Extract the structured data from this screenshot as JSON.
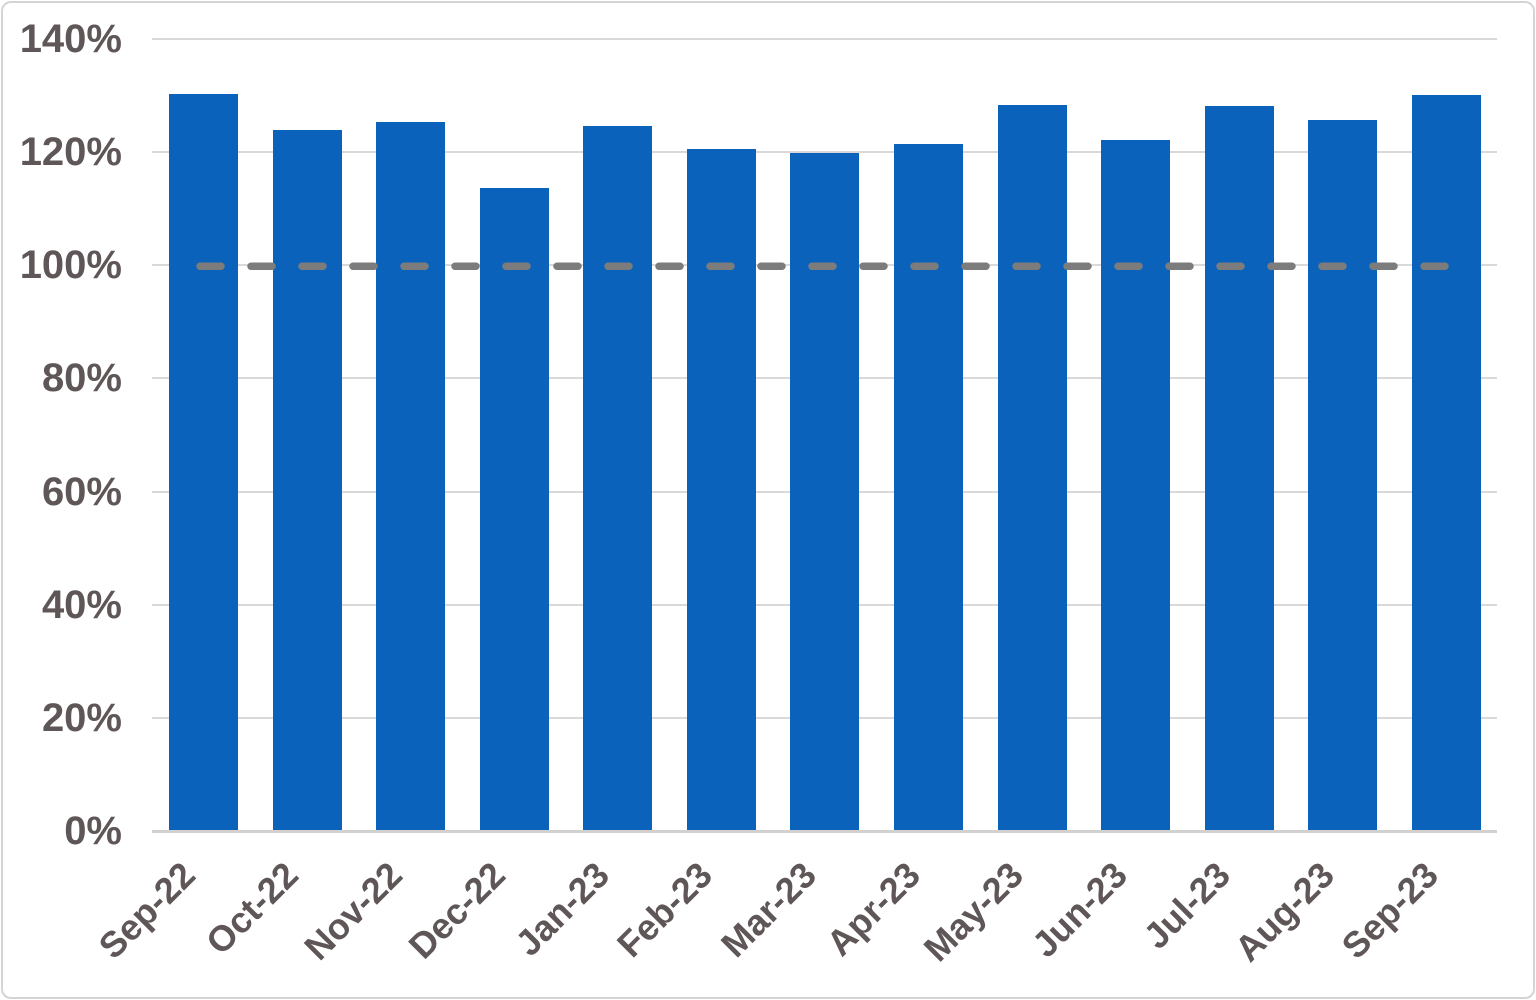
{
  "chart_data": {
    "type": "bar",
    "title": "",
    "categories": [
      "Sep-22",
      "Oct-22",
      "Nov-22",
      "Dec-22",
      "Jan-23",
      "Feb-23",
      "Mar-23",
      "Apr-23",
      "May-23",
      "Jun-23",
      "Jul-23",
      "Aug-23",
      "Sep-23"
    ],
    "values": [
      130.3,
      124.0,
      125.4,
      113.6,
      124.7,
      120.6,
      119.8,
      121.5,
      128.3,
      122.2,
      128.2,
      125.6,
      130.1
    ],
    "unit": "%",
    "xlabel": "",
    "ylabel": "",
    "ylim": [
      0,
      140
    ],
    "y_tick_values": [
      140,
      120,
      100,
      80,
      60,
      40,
      20,
      0
    ],
    "y_tick_labels": [
      "140%",
      "120%",
      "100%",
      "80%",
      "60%",
      "40%",
      "20%",
      "0%"
    ],
    "grid": "horizontal",
    "legend": "none",
    "reference_line": {
      "value": 100,
      "label": "100%",
      "style": "dashed",
      "color": "#7c7c7c"
    },
    "colors": {
      "bar": "#0b62ba",
      "axis_text": "#5f5757",
      "gridline": "#d9d9d9",
      "baseline": "#d3d0d0",
      "frame_border": "#d6d3d3",
      "background": "#ffffff"
    }
  }
}
